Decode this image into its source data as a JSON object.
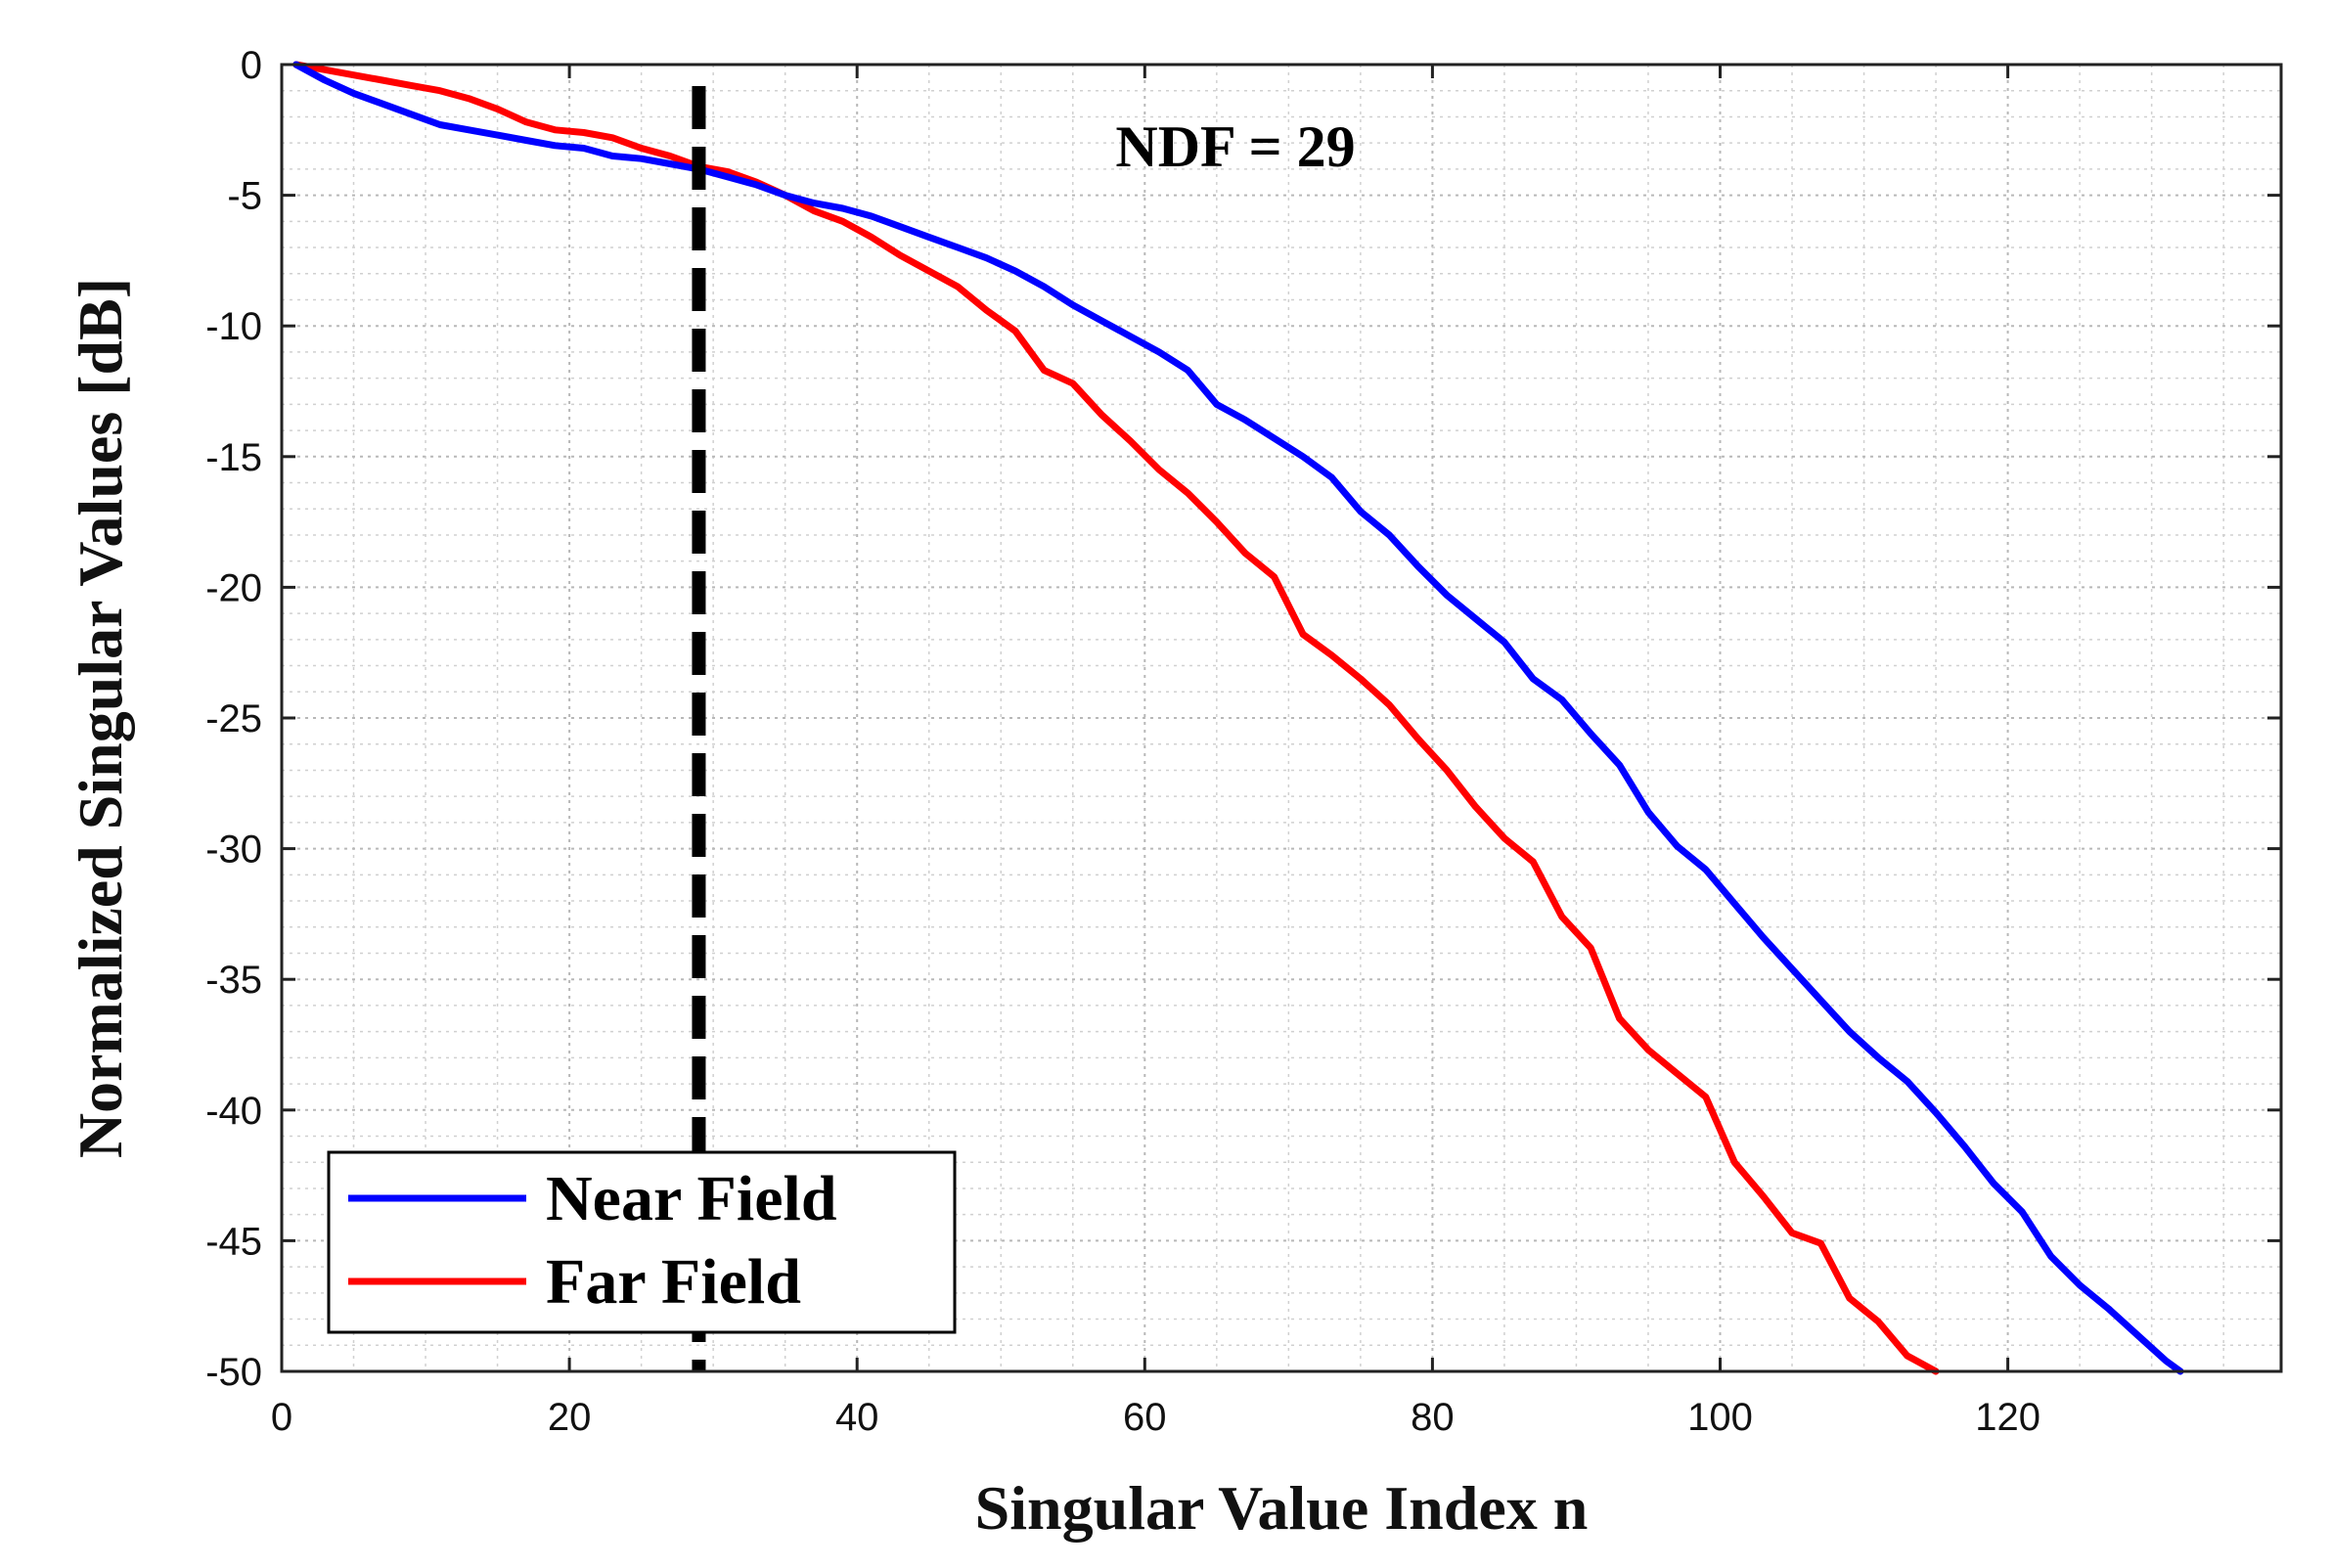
{
  "chart_data": {
    "type": "line",
    "xlabel": "Singular Value Index n",
    "ylabel": "Normalized Singular Values [dB]",
    "xlim": [
      0,
      139
    ],
    "ylim": [
      -50,
      0
    ],
    "x_ticks": [
      0,
      20,
      40,
      60,
      80,
      100,
      120
    ],
    "y_ticks": [
      0,
      -5,
      -10,
      -15,
      -20,
      -25,
      -30,
      -35,
      -40,
      -45,
      -50
    ],
    "x_tick_labels": [
      "0",
      "20",
      "40",
      "60",
      "80",
      "100",
      "120"
    ],
    "y_tick_labels": [
      "0",
      "-5",
      "-10",
      "-15",
      "-20",
      "-25",
      "-30",
      "-35",
      "-40",
      "-45",
      "-50"
    ],
    "grid": "major and minor, dotted",
    "legend_position": "bottom-left",
    "annotation": "NDF = 29",
    "vertical_line": {
      "x": 29,
      "style": "dashed",
      "color": "#000000"
    },
    "series": [
      {
        "name": "Near Field",
        "color": "#0000ff",
        "x": [
          1,
          3,
          5,
          7,
          9,
          11,
          13,
          15,
          17,
          19,
          21,
          23,
          25,
          27,
          29,
          31,
          33,
          35,
          37,
          39,
          41,
          43,
          45,
          47,
          49,
          51,
          53,
          55,
          57,
          59,
          61,
          63,
          65,
          67,
          69,
          71,
          73,
          75,
          77,
          79,
          81,
          83,
          85,
          87,
          89,
          91,
          93,
          95,
          97,
          99,
          101,
          103,
          105,
          107,
          109,
          111,
          113,
          115,
          117,
          119,
          121,
          123,
          125,
          127,
          129,
          131,
          132
        ],
        "y": [
          0,
          -0.6,
          -1.1,
          -1.5,
          -1.9,
          -2.3,
          -2.5,
          -2.7,
          -2.9,
          -3.1,
          -3.2,
          -3.5,
          -3.6,
          -3.8,
          -4.0,
          -4.3,
          -4.6,
          -5.0,
          -5.3,
          -5.5,
          -5.8,
          -6.2,
          -6.6,
          -7.0,
          -7.4,
          -7.9,
          -8.5,
          -9.2,
          -9.8,
          -10.4,
          -11.0,
          -11.7,
          -13.0,
          -13.6,
          -14.3,
          -15.0,
          -15.8,
          -17.1,
          -18.0,
          -19.2,
          -20.3,
          -21.2,
          -22.1,
          -23.5,
          -24.3,
          -25.6,
          -26.8,
          -28.6,
          -29.9,
          -30.8,
          -32.1,
          -33.4,
          -34.6,
          -35.8,
          -37.0,
          -38.0,
          -38.9,
          -40.1,
          -41.4,
          -42.8,
          -43.9,
          -45.6,
          -46.7,
          -47.6,
          -48.6,
          -49.6,
          -50.0
        ]
      },
      {
        "name": "Far Field",
        "color": "#ff0000",
        "x": [
          1,
          3,
          5,
          7,
          9,
          11,
          13,
          15,
          17,
          19,
          21,
          23,
          25,
          27,
          29,
          31,
          33,
          35,
          37,
          39,
          41,
          43,
          45,
          47,
          49,
          51,
          53,
          55,
          57,
          59,
          61,
          63,
          65,
          67,
          69,
          71,
          73,
          75,
          77,
          79,
          81,
          83,
          85,
          87,
          89,
          91,
          93,
          95,
          97,
          99,
          101,
          103,
          105,
          107,
          109,
          111,
          113,
          115
        ],
        "y": [
          0,
          -0.2,
          -0.4,
          -0.6,
          -0.8,
          -1.0,
          -1.3,
          -1.7,
          -2.2,
          -2.5,
          -2.6,
          -2.8,
          -3.2,
          -3.5,
          -3.9,
          -4.1,
          -4.5,
          -5.0,
          -5.6,
          -6.0,
          -6.6,
          -7.3,
          -7.9,
          -8.5,
          -9.4,
          -10.2,
          -11.7,
          -12.2,
          -13.4,
          -14.4,
          -15.5,
          -16.4,
          -17.5,
          -18.7,
          -19.6,
          -21.8,
          -22.6,
          -23.5,
          -24.5,
          -25.8,
          -27.0,
          -28.4,
          -29.6,
          -30.5,
          -32.6,
          -33.8,
          -36.5,
          -37.7,
          -38.6,
          -39.5,
          -42.0,
          -43.3,
          -44.7,
          -45.1,
          -47.2,
          -48.1,
          -49.4,
          -50.0
        ]
      }
    ]
  }
}
